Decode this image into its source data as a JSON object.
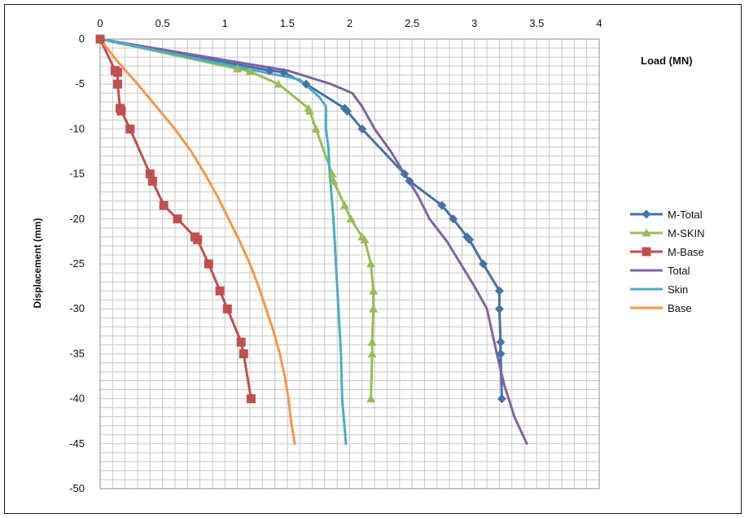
{
  "chart_data": {
    "type": "line",
    "xlabel": "Load (MN)",
    "ylabel": "Displacement (mm)",
    "xlim": [
      0,
      4
    ],
    "ylim": [
      -50,
      0
    ],
    "x_ticks": [
      0,
      0.5,
      1,
      1.5,
      2,
      2.5,
      3,
      3.5,
      4
    ],
    "x_tick_labels": [
      "0",
      "0.5",
      "1",
      "1.5",
      "2",
      "2.5",
      "3",
      "3.5",
      "4"
    ],
    "y_ticks": [
      0,
      -5,
      -10,
      -15,
      -20,
      -25,
      -30,
      -35,
      -40,
      -45,
      -50
    ],
    "y_tick_labels": [
      "0",
      "-5",
      "-10",
      "-15",
      "-20",
      "-25",
      "-30",
      "-35",
      "-40",
      "-45",
      "-50"
    ],
    "x_axis_position": "top",
    "grid": true,
    "legend_position": "right",
    "series": [
      {
        "name": "M-Total",
        "color": "#4572A7",
        "marker": "diamond",
        "points": [
          [
            0,
            0
          ],
          [
            1.36,
            -3.5
          ],
          [
            1.47,
            -3.7
          ],
          [
            1.65,
            -5
          ],
          [
            1.96,
            -7.7
          ],
          [
            1.98,
            -8
          ],
          [
            2.1,
            -10
          ],
          [
            2.44,
            -15
          ],
          [
            2.48,
            -15.8
          ],
          [
            2.74,
            -18.5
          ],
          [
            2.83,
            -20
          ],
          [
            2.94,
            -22
          ],
          [
            2.96,
            -22.3
          ],
          [
            3.07,
            -25
          ],
          [
            3.2,
            -28
          ],
          [
            3.2,
            -30
          ],
          [
            3.21,
            -33.7
          ],
          [
            3.21,
            -35
          ],
          [
            3.22,
            -40
          ]
        ]
      },
      {
        "name": "M-SKIN",
        "color": "#9BBB59",
        "marker": "triangle",
        "points": [
          [
            0,
            0
          ],
          [
            1.1,
            -3.3
          ],
          [
            1.2,
            -3.6
          ],
          [
            1.43,
            -5
          ],
          [
            1.67,
            -7.7
          ],
          [
            1.68,
            -8
          ],
          [
            1.73,
            -10
          ],
          [
            1.86,
            -15
          ],
          [
            1.87,
            -15.8
          ],
          [
            1.96,
            -18.5
          ],
          [
            2.01,
            -20
          ],
          [
            2.1,
            -22
          ],
          [
            2.12,
            -22.3
          ],
          [
            2.17,
            -25
          ],
          [
            2.19,
            -28
          ],
          [
            2.19,
            -30
          ],
          [
            2.18,
            -33.7
          ],
          [
            2.18,
            -35
          ],
          [
            2.17,
            -40
          ]
        ]
      },
      {
        "name": "M-Base",
        "color": "#C0504D",
        "marker": "square",
        "points": [
          [
            0,
            0
          ],
          [
            0.12,
            -3.5
          ],
          [
            0.14,
            -3.7
          ],
          [
            0.14,
            -5
          ],
          [
            0.16,
            -7.7
          ],
          [
            0.17,
            -8
          ],
          [
            0.24,
            -10
          ],
          [
            0.4,
            -15
          ],
          [
            0.42,
            -15.8
          ],
          [
            0.51,
            -18.5
          ],
          [
            0.62,
            -20
          ],
          [
            0.76,
            -22
          ],
          [
            0.78,
            -22.3
          ],
          [
            0.87,
            -25
          ],
          [
            0.96,
            -28
          ],
          [
            1.02,
            -30
          ],
          [
            1.13,
            -33.7
          ],
          [
            1.15,
            -35
          ],
          [
            1.21,
            -40
          ]
        ]
      },
      {
        "name": "Total",
        "color": "#8064A2",
        "marker": "none",
        "points": [
          [
            0,
            0
          ],
          [
            1.5,
            -3.5
          ],
          [
            1.85,
            -5
          ],
          [
            2.02,
            -6
          ],
          [
            2.1,
            -7.5
          ],
          [
            2.2,
            -10
          ],
          [
            2.33,
            -12.5
          ],
          [
            2.44,
            -15
          ],
          [
            2.55,
            -17.5
          ],
          [
            2.64,
            -20
          ],
          [
            2.78,
            -22.5
          ],
          [
            2.89,
            -25
          ],
          [
            3.0,
            -27.5
          ],
          [
            3.1,
            -30
          ],
          [
            3.18,
            -35
          ],
          [
            3.24,
            -38.5
          ],
          [
            3.32,
            -42
          ],
          [
            3.42,
            -45
          ]
        ]
      },
      {
        "name": "Skin",
        "color": "#4BACC6",
        "marker": "none",
        "points": [
          [
            0,
            0
          ],
          [
            1.6,
            -4.5
          ],
          [
            1.76,
            -6.5
          ],
          [
            1.81,
            -7.5
          ],
          [
            1.81,
            -10
          ],
          [
            1.83,
            -12
          ],
          [
            1.84,
            -15
          ],
          [
            1.87,
            -20
          ],
          [
            1.89,
            -25
          ],
          [
            1.91,
            -30
          ],
          [
            1.93,
            -35
          ],
          [
            1.94,
            -40
          ],
          [
            1.97,
            -45
          ]
        ]
      },
      {
        "name": "Base",
        "color": "#F79646",
        "marker": "none",
        "points": [
          [
            0,
            0
          ],
          [
            0.14,
            -2.5
          ],
          [
            0.3,
            -5
          ],
          [
            0.45,
            -7.5
          ],
          [
            0.6,
            -10
          ],
          [
            0.73,
            -12.5
          ],
          [
            0.84,
            -15
          ],
          [
            0.94,
            -17.5
          ],
          [
            1.03,
            -20
          ],
          [
            1.12,
            -22.5
          ],
          [
            1.2,
            -25
          ],
          [
            1.27,
            -27.5
          ],
          [
            1.33,
            -30
          ],
          [
            1.39,
            -32.5
          ],
          [
            1.44,
            -35
          ],
          [
            1.48,
            -37.5
          ],
          [
            1.51,
            -40
          ],
          [
            1.53,
            -42.5
          ],
          [
            1.56,
            -45
          ]
        ]
      }
    ]
  }
}
